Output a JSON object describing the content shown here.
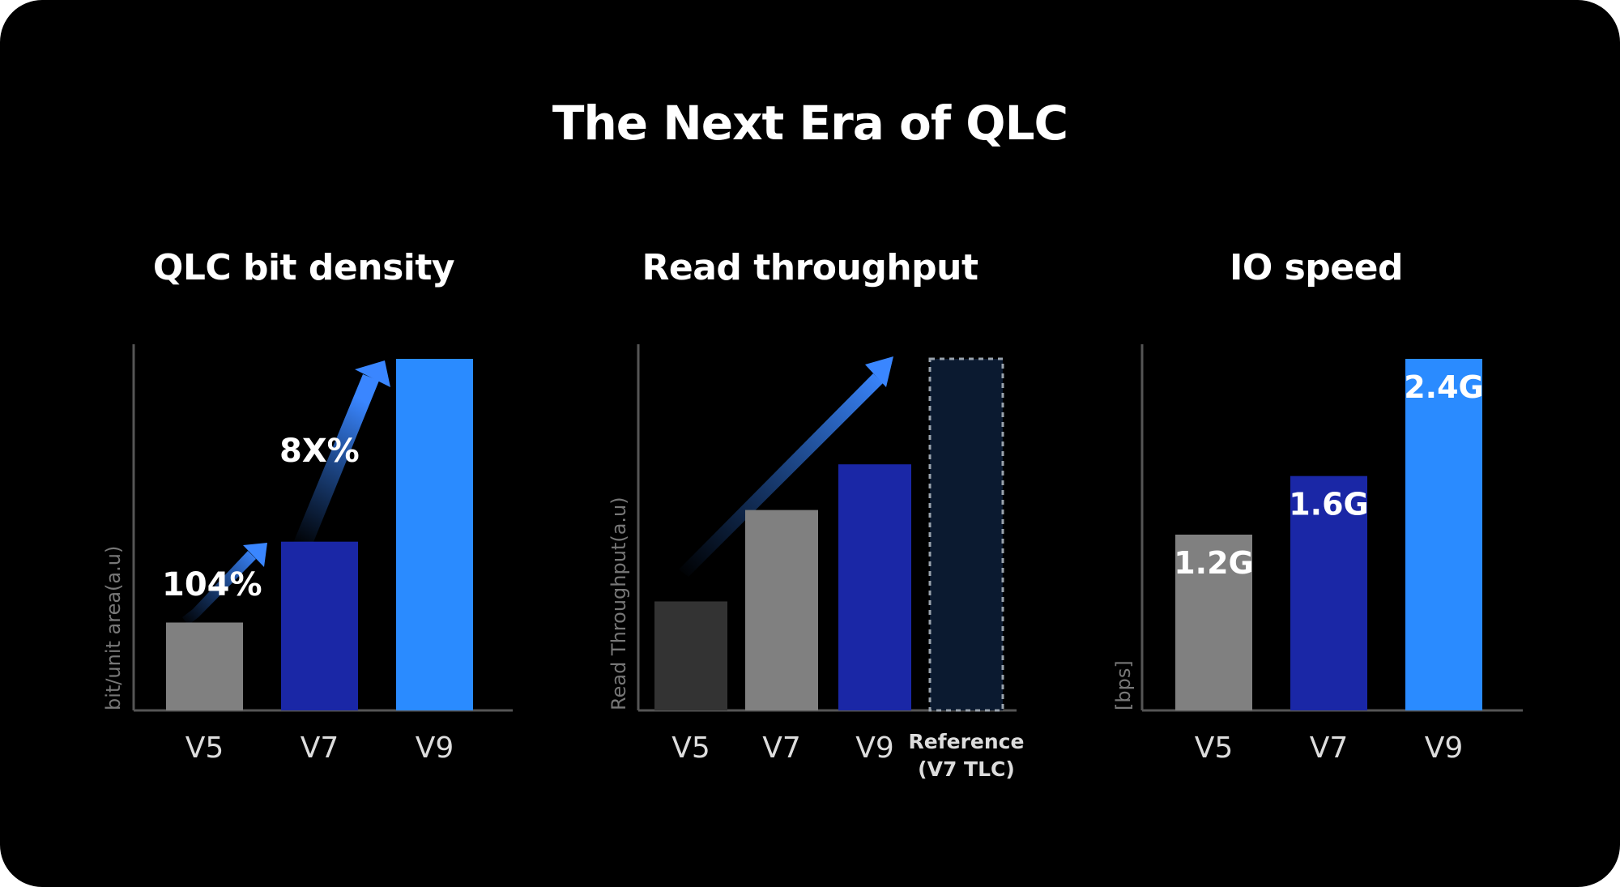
{
  "title": "The Next Era of QLC",
  "colors": {
    "background": "#000000",
    "v5_gray": "#808080",
    "v5_dark": "#333333",
    "v7_navy": "#1a27a6",
    "v9_blue": "#2a8bff",
    "reference_fill": "#0b1a30"
  },
  "chart_data": [
    {
      "type": "bar",
      "title": "QLC bit density",
      "ylabel": "bit/unit area(a.u)",
      "categories": [
        "V5",
        "V7",
        "V9"
      ],
      "values": [
        25,
        48,
        100
      ],
      "colors": [
        "#808080",
        "#1a27a6",
        "#2a8bff"
      ],
      "annotations": [
        "104%",
        "8X%"
      ],
      "ylim": [
        0,
        100
      ]
    },
    {
      "type": "bar",
      "title": "Read throughput",
      "ylabel": "Read Throughput(a.u)",
      "categories": [
        "V5",
        "V7",
        "V9",
        "Reference\n(V7 TLC)"
      ],
      "values": [
        31,
        57,
        70,
        100
      ],
      "colors": [
        "#333333",
        "#808080",
        "#1a27a6",
        "#0b1a30"
      ],
      "reference_index": 3,
      "ylim": [
        0,
        100
      ]
    },
    {
      "type": "bar",
      "title": "IO speed",
      "ylabel": "[bps]",
      "categories": [
        "V5",
        "V7",
        "V9"
      ],
      "values": [
        1.2,
        1.6,
        2.4
      ],
      "data_labels": [
        "1.2G",
        "1.6G",
        "2.4G"
      ],
      "colors": [
        "#808080",
        "#1a27a6",
        "#2a8bff"
      ],
      "ylim": [
        0,
        2.4
      ]
    }
  ]
}
